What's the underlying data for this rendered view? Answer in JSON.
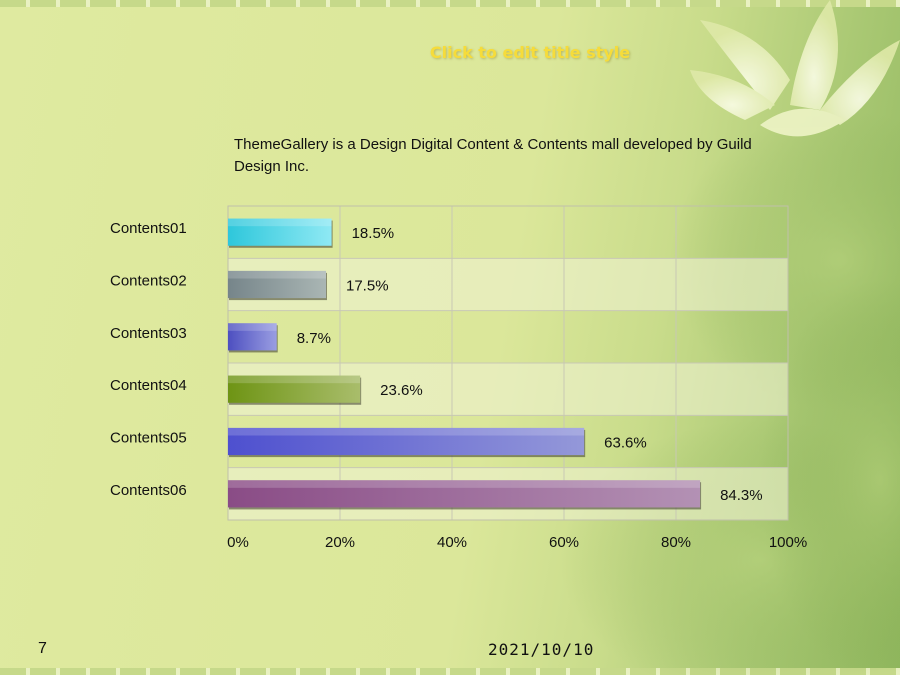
{
  "slide": {
    "title": "Click to edit title style",
    "subtitle": "ThemeGallery  is a Design Digital Content & Contents mall developed by Guild Design Inc.",
    "page_number": "7",
    "date": "2021/10/10",
    "decoration": "lotus-flower-background"
  },
  "chart_data": {
    "type": "bar",
    "orientation": "horizontal",
    "categories": [
      "Contents01",
      "Contents02",
      "Contents03",
      "Contents04",
      "Contents05",
      "Contents06"
    ],
    "values": [
      18.5,
      17.5,
      8.7,
      23.6,
      63.6,
      84.3
    ],
    "value_labels": [
      "18.5%",
      "17.5%",
      "8.7%",
      "23.6%",
      "63.6%",
      "84.3%"
    ],
    "colors": [
      [
        "#2ec7db",
        "#8fe9f4"
      ],
      [
        "#76858a",
        "#aab6b4"
      ],
      [
        "#4d4fc0",
        "#9a9ee2"
      ],
      [
        "#6e9414",
        "#a9bd6b"
      ],
      [
        "#4e50cf",
        "#9498d9"
      ],
      [
        "#8a4c86",
        "#b391b4"
      ]
    ],
    "xlim": [
      0,
      100
    ],
    "xticks": [
      "0%",
      "20%",
      "40%",
      "60%",
      "80%",
      "100%"
    ],
    "grid": true,
    "legend": "none"
  }
}
